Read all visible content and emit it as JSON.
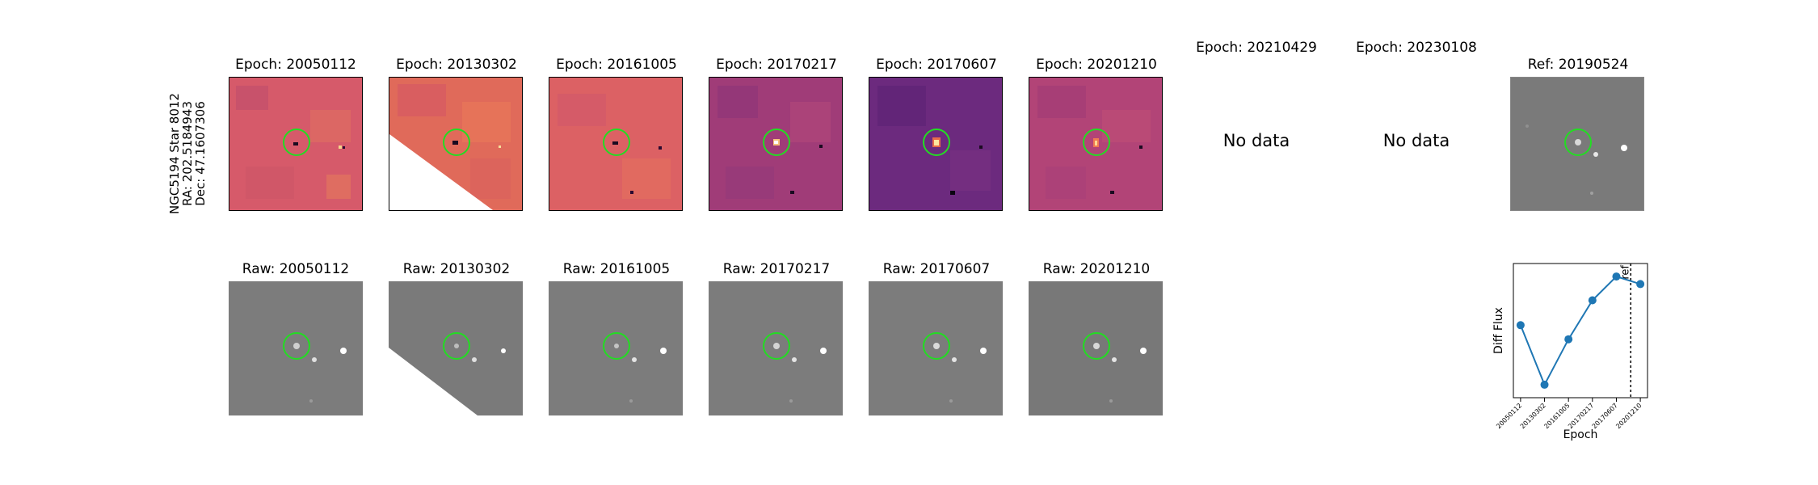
{
  "object": {
    "name": "NGC5194 Star 8012",
    "ra": "RA: 202.5184943",
    "dec": "Dec: 47.1607306"
  },
  "diff_titles": [
    "Epoch: 20050112",
    "Epoch: 20130302",
    "Epoch: 20161005",
    "Epoch: 20170217",
    "Epoch: 20170607",
    "Epoch: 20201210",
    "Epoch: 20210429",
    "Epoch: 20230108",
    "Ref: 20190524"
  ],
  "raw_titles": [
    "Raw: 20050112",
    "Raw: 20130302",
    "Raw: 20161005",
    "Raw: 20170217",
    "Raw: 20170607",
    "Raw: 20201210"
  ],
  "no_data_label": "No data",
  "colors": {
    "circle": "#22dd22",
    "line": "#1f77b4",
    "raw_bg": "#7a7a7a",
    "diff_bg_1": "#d65a6a",
    "diff_bg_2": "#e06a5a",
    "diff_bg_3": "#a03c78",
    "diff_bg_4": "#6c2a7e"
  },
  "chart_data": {
    "type": "line",
    "x": [
      "20050112",
      "20130302",
      "20161005",
      "20170217",
      "20170607",
      "20201210"
    ],
    "values": [
      0.55,
      0.0,
      0.42,
      0.78,
      1.0,
      0.93
    ],
    "xlabel": "Epoch",
    "ylabel": "Diff Flux",
    "reference_line": {
      "position": 4.6,
      "label": "ref"
    },
    "grid": false,
    "legend": "none"
  }
}
